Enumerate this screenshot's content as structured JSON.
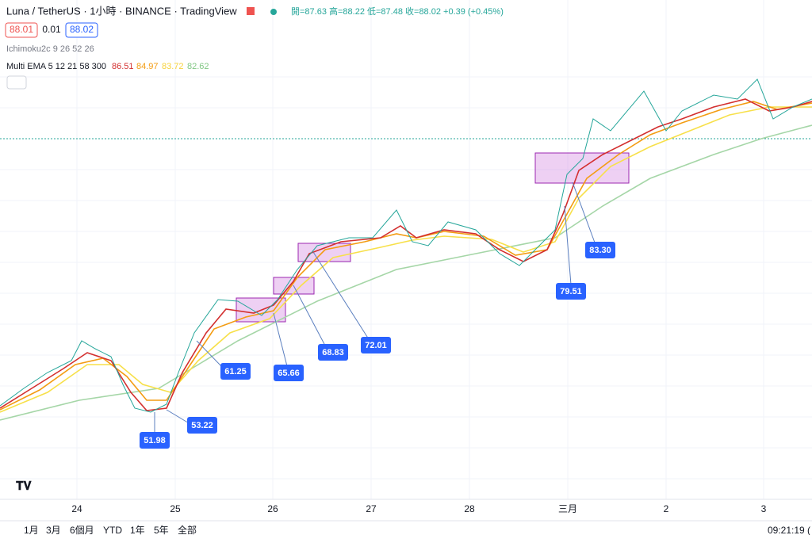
{
  "header": {
    "symbol": "Luna / TetherUS · 1小時 · BINANCE · TradingView",
    "ohlc": "開=87.63 高=88.22 低=87.48 收=88.02 +0.39 (+0.45%)",
    "bid": "88.01",
    "spread": "0.01",
    "ask": "88.02"
  },
  "indicators": {
    "ichimoku": "Ichimoku2c 9 26 52 26",
    "ema": "Multi EMA 5 12 21 58 300",
    "ema_values": [
      "86.51",
      "84.97",
      "83.72",
      "82.62"
    ]
  },
  "callouts": [
    "51.98",
    "53.22",
    "61.25",
    "65.66",
    "68.83",
    "72.01",
    "79.51",
    "83.30"
  ],
  "x_axis": [
    "24",
    "25",
    "26",
    "27",
    "28",
    "三月",
    "2",
    "3"
  ],
  "toolbar": {
    "ranges": [
      "1月",
      "3月",
      "6個月",
      "YTD",
      "1年",
      "5年",
      "全部"
    ],
    "clock": "09:21:19 ("
  }
}
